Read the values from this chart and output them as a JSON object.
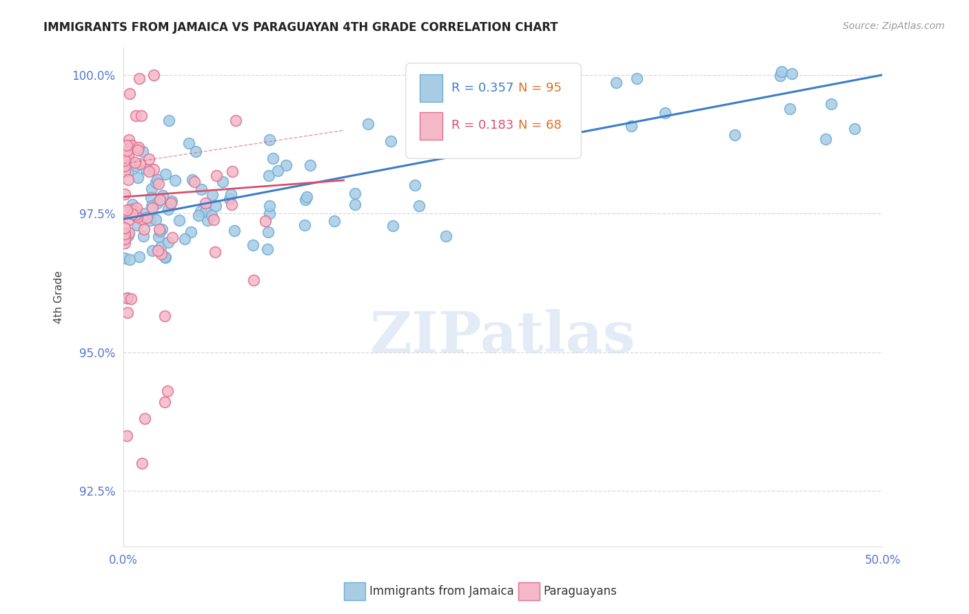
{
  "title": "IMMIGRANTS FROM JAMAICA VS PARAGUAYAN 4TH GRADE CORRELATION CHART",
  "source": "Source: ZipAtlas.com",
  "ylabel": "4th Grade",
  "xlim": [
    0.0,
    0.5
  ],
  "ylim": [
    0.915,
    1.005
  ],
  "yticks": [
    0.925,
    0.95,
    0.975,
    1.0
  ],
  "ytick_labels": [
    "92.5%",
    "95.0%",
    "97.5%",
    "100.0%"
  ],
  "xticks": [
    0.0,
    0.1,
    0.2,
    0.3,
    0.4,
    0.5
  ],
  "xtick_labels": [
    "0.0%",
    "",
    "",
    "",
    "",
    "50.0%"
  ],
  "legend_blue_R": "R = 0.357",
  "legend_blue_N": "N = 95",
  "legend_pink_R": "R = 0.183",
  "legend_pink_N": "N = 68",
  "blue_color": "#a8cce4",
  "blue_edge_color": "#6baed6",
  "pink_color": "#f4b8c8",
  "pink_edge_color": "#e07090",
  "blue_line_color": "#3a7dc9",
  "pink_line_color": "#d94f6e",
  "watermark": "ZIPatlas",
  "background_color": "#ffffff",
  "grid_color": "#c8c8c8",
  "tick_label_color": "#5577cc",
  "title_color": "#222222",
  "source_color": "#999999",
  "ylabel_color": "#444444",
  "legend_N_color": "#e07020"
}
